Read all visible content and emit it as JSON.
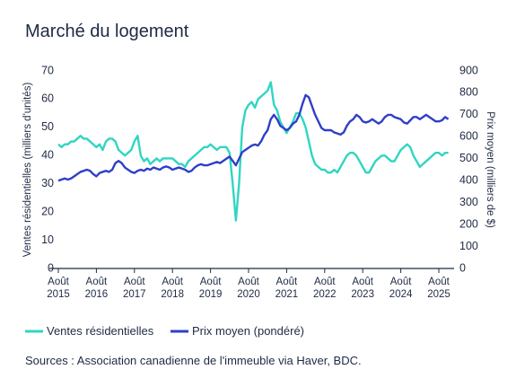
{
  "chart_data": {
    "type": "line",
    "title": "Marché du logement",
    "ylabel": "Ventes résidentielles (milliers d'unités)",
    "y2label": "Prix moyen (milliers de $)",
    "source": "Sources : Association canadienne de l'immeuble via Haver, BDC.",
    "x": [
      "2015-08",
      "2015-09",
      "2015-10",
      "2015-11",
      "2015-12",
      "2016-01",
      "2016-02",
      "2016-03",
      "2016-04",
      "2016-05",
      "2016-06",
      "2016-07",
      "2016-08",
      "2016-09",
      "2016-10",
      "2016-11",
      "2016-12",
      "2017-01",
      "2017-02",
      "2017-03",
      "2017-04",
      "2017-05",
      "2017-06",
      "2017-07",
      "2017-08",
      "2017-09",
      "2017-10",
      "2017-11",
      "2017-12",
      "2018-01",
      "2018-02",
      "2018-03",
      "2018-04",
      "2018-05",
      "2018-06",
      "2018-07",
      "2018-08",
      "2018-09",
      "2018-10",
      "2018-11",
      "2018-12",
      "2019-01",
      "2019-02",
      "2019-03",
      "2019-04",
      "2019-05",
      "2019-06",
      "2019-07",
      "2019-08",
      "2019-09",
      "2019-10",
      "2019-11",
      "2019-12",
      "2020-01",
      "2020-02",
      "2020-03",
      "2020-04",
      "2020-05",
      "2020-06",
      "2020-07",
      "2020-08",
      "2020-09",
      "2020-10",
      "2020-11",
      "2020-12",
      "2021-01",
      "2021-02",
      "2021-03",
      "2021-04",
      "2021-05",
      "2021-06",
      "2021-07",
      "2021-08",
      "2021-09",
      "2021-10",
      "2021-11",
      "2021-12",
      "2022-01",
      "2022-02",
      "2022-03",
      "2022-04",
      "2022-05",
      "2022-06",
      "2022-07",
      "2022-08",
      "2022-09",
      "2022-10",
      "2022-11",
      "2022-12",
      "2023-01",
      "2023-02",
      "2023-03",
      "2023-04",
      "2023-05",
      "2023-06",
      "2023-07",
      "2023-08",
      "2023-09",
      "2023-10",
      "2023-11",
      "2023-12",
      "2024-01",
      "2024-02",
      "2024-03",
      "2024-04",
      "2024-05",
      "2024-06",
      "2024-07",
      "2024-08",
      "2024-09",
      "2024-10",
      "2024-11",
      "2024-12",
      "2025-01",
      "2025-02",
      "2025-03",
      "2025-04",
      "2025-05",
      "2025-06",
      "2025-07",
      "2025-08",
      "2025-09",
      "2025-10",
      "2025-11"
    ],
    "xticks": [
      {
        "value": "2015-08",
        "label": "Août 2015"
      },
      {
        "value": "2016-08",
        "label": "Août 2016"
      },
      {
        "value": "2017-08",
        "label": "Août 2017"
      },
      {
        "value": "2018-08",
        "label": "Août 2018"
      },
      {
        "value": "2019-08",
        "label": "Août 2019"
      },
      {
        "value": "2020-08",
        "label": "Août 2020"
      },
      {
        "value": "2021-08",
        "label": "Août 2021"
      },
      {
        "value": "2022-08",
        "label": "Août 2022"
      },
      {
        "value": "2023-08",
        "label": "Août 2023"
      },
      {
        "value": "2024-08",
        "label": "Août 2024"
      },
      {
        "value": "2025-08",
        "label": "Août 2025"
      }
    ],
    "ylim": [
      0,
      70
    ],
    "yticks": [
      0,
      10,
      20,
      30,
      40,
      50,
      60,
      70
    ],
    "y2lim": [
      0,
      900
    ],
    "y2ticks": [
      0,
      100,
      200,
      300,
      400,
      500,
      600,
      700,
      800,
      900
    ],
    "series": [
      {
        "name": "Ventes résidentielles",
        "color": "#2fd6c2",
        "values": [
          44,
          43,
          44,
          44,
          45,
          45,
          46,
          47,
          46,
          46,
          45,
          44,
          43,
          44,
          42,
          45,
          46,
          46,
          45,
          42,
          41,
          40,
          41,
          42,
          45,
          47,
          40,
          38,
          39,
          37,
          38,
          39,
          38,
          39,
          39,
          39,
          39,
          38,
          37,
          37,
          36,
          38,
          39,
          40,
          41,
          42,
          43,
          43,
          44,
          43,
          42,
          43,
          43,
          43,
          41,
          30,
          17,
          30,
          50,
          56,
          58,
          59,
          57,
          60,
          61,
          62,
          63,
          66,
          58,
          56,
          52,
          50,
          48,
          50,
          52,
          55,
          55,
          53,
          50,
          45,
          40,
          37,
          36,
          35,
          35,
          34,
          34,
          35,
          34,
          36,
          38,
          40,
          41,
          41,
          40,
          38,
          36,
          34,
          34,
          36,
          38,
          39,
          40,
          40,
          39,
          38,
          38,
          40,
          42,
          43,
          44,
          43,
          40,
          38,
          36,
          37,
          38,
          39,
          40,
          41,
          41,
          40,
          41,
          41
        ]
      },
      {
        "name": "Prix moyen (pondéré)",
        "color": "#2f3fc8",
        "axis": "y2",
        "values": [
          400,
          405,
          410,
          405,
          410,
          420,
          430,
          440,
          445,
          450,
          445,
          430,
          420,
          435,
          440,
          445,
          440,
          450,
          480,
          490,
          480,
          460,
          450,
          440,
          435,
          445,
          450,
          445,
          455,
          450,
          460,
          455,
          450,
          460,
          465,
          460,
          450,
          455,
          460,
          455,
          450,
          440,
          445,
          460,
          470,
          475,
          470,
          470,
          475,
          480,
          485,
          480,
          490,
          500,
          510,
          490,
          470,
          500,
          530,
          540,
          550,
          560,
          565,
          560,
          580,
          610,
          630,
          680,
          700,
          680,
          650,
          640,
          630,
          640,
          660,
          670,
          700,
          750,
          790,
          780,
          740,
          700,
          670,
          640,
          630,
          630,
          630,
          620,
          615,
          610,
          620,
          650,
          670,
          680,
          700,
          690,
          670,
          665,
          670,
          680,
          670,
          660,
          670,
          690,
          700,
          700,
          690,
          685,
          680,
          665,
          660,
          675,
          690,
          690,
          680,
          690,
          700,
          690,
          680,
          670,
          670,
          675,
          690,
          680
        ]
      }
    ]
  }
}
